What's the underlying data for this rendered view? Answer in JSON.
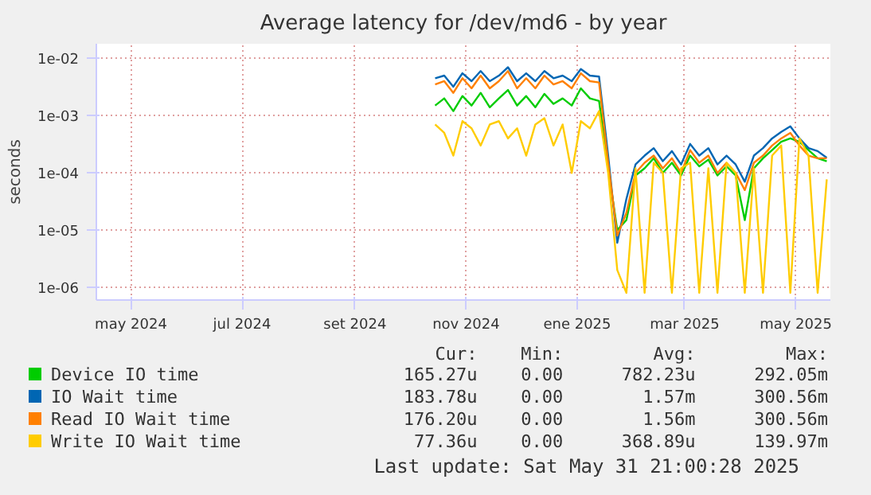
{
  "chart_data": {
    "type": "line",
    "title": "Average latency for /dev/md6 - by year",
    "ylabel": "seconds",
    "x": [
      "2024-10-15",
      "2024-10-20",
      "2024-10-25",
      "2024-10-30",
      "2024-11-04",
      "2024-11-09",
      "2024-11-14",
      "2024-11-19",
      "2024-11-24",
      "2024-11-29",
      "2024-12-04",
      "2024-12-09",
      "2024-12-14",
      "2024-12-19",
      "2024-12-24",
      "2024-12-29",
      "2025-01-03",
      "2025-01-08",
      "2025-01-13",
      "2025-01-18",
      "2025-01-23",
      "2025-01-28",
      "2025-02-02",
      "2025-02-07",
      "2025-02-12",
      "2025-02-17",
      "2025-02-22",
      "2025-02-27",
      "2025-03-04",
      "2025-03-09",
      "2025-03-14",
      "2025-03-19",
      "2025-03-24",
      "2025-03-29",
      "2025-04-03",
      "2025-04-08",
      "2025-04-13",
      "2025-04-18",
      "2025-04-23",
      "2025-04-28",
      "2025-05-03",
      "2025-05-08",
      "2025-05-13",
      "2025-05-18"
    ],
    "series": [
      {
        "name": "Device IO time",
        "color": "#00cc00",
        "values": [
          0.0015,
          0.002,
          0.0012,
          0.0022,
          0.0015,
          0.0025,
          0.0014,
          0.002,
          0.0028,
          0.0015,
          0.0022,
          0.0014,
          0.0024,
          0.0016,
          0.002,
          0.0015,
          0.003,
          0.002,
          0.0018,
          0.00012,
          1e-05,
          1.5e-05,
          9e-05,
          0.00012,
          0.00018,
          0.0001,
          0.00015,
          9e-05,
          0.0002,
          0.00013,
          0.00017,
          9e-05,
          0.00013,
          9e-05,
          1.5e-05,
          0.00012,
          0.00018,
          0.00025,
          0.00035,
          0.0004,
          0.00035,
          0.00025,
          0.00018,
          0.00016
        ]
      },
      {
        "name": "IO Wait time",
        "color": "#0066b3",
        "values": [
          0.0045,
          0.005,
          0.0032,
          0.0055,
          0.004,
          0.006,
          0.004,
          0.005,
          0.007,
          0.004,
          0.0055,
          0.004,
          0.006,
          0.0045,
          0.005,
          0.004,
          0.0065,
          0.005,
          0.0048,
          0.0002,
          6e-06,
          3.5e-05,
          0.00014,
          0.0002,
          0.00027,
          0.00016,
          0.00024,
          0.00014,
          0.00032,
          0.0002,
          0.00027,
          0.00014,
          0.0002,
          0.00014,
          7e-05,
          0.0002,
          0.00027,
          0.0004,
          0.00052,
          0.00065,
          0.0004,
          0.00027,
          0.00024,
          0.000184
        ]
      },
      {
        "name": "Read IO Wait time",
        "color": "#ff8000",
        "values": [
          0.0035,
          0.004,
          0.0025,
          0.0045,
          0.003,
          0.005,
          0.003,
          0.004,
          0.006,
          0.003,
          0.0045,
          0.003,
          0.005,
          0.0035,
          0.004,
          0.003,
          0.0055,
          0.004,
          0.0038,
          0.00015,
          8e-06,
          2e-05,
          0.0001,
          0.00015,
          0.0002,
          0.00012,
          0.00018,
          0.0001,
          0.00025,
          0.00015,
          0.0002,
          0.0001,
          0.00015,
          0.0001,
          5e-05,
          0.00015,
          0.0002,
          0.0003,
          0.0004,
          0.0005,
          0.0003,
          0.0002,
          0.00018,
          0.00018
        ]
      },
      {
        "name": "Write IO Wait time",
        "color": "#ffcc00",
        "values": [
          0.0007,
          0.0005,
          0.0002,
          0.0008,
          0.0006,
          0.0003,
          0.0007,
          0.0008,
          0.0004,
          0.0006,
          0.0002,
          0.0007,
          0.0009,
          0.0003,
          0.0007,
          0.0001,
          0.0008,
          0.0006,
          0.0012,
          0.0001,
          2e-06,
          8e-07,
          0.00012,
          8e-07,
          0.00015,
          0.0001,
          8e-07,
          0.00012,
          0.00015,
          8e-07,
          0.00012,
          8e-07,
          0.00015,
          0.0001,
          8e-07,
          0.00012,
          8e-07,
          0.0002,
          0.0003,
          8e-07,
          0.0004,
          0.0002,
          8e-07,
          7.7e-05
        ]
      }
    ],
    "xlim": [
      "2024-04-12",
      "2025-05-20"
    ],
    "xticks": [
      {
        "value": "2024-05-01",
        "label": "may 2024"
      },
      {
        "value": "2024-07-01",
        "label": "jul 2024"
      },
      {
        "value": "2024-09-01",
        "label": "set 2024"
      },
      {
        "value": "2024-11-01",
        "label": "nov 2024"
      },
      {
        "value": "2025-01-01",
        "label": "ene 2025"
      },
      {
        "value": "2025-03-01",
        "label": "mar 2025"
      },
      {
        "value": "2025-05-01",
        "label": "may 2025"
      }
    ],
    "ylim": [
      6e-07,
      0.018
    ],
    "yticks": [
      {
        "value": 1e-06,
        "label": "1e-06"
      },
      {
        "value": 1e-05,
        "label": "1e-05"
      },
      {
        "value": 0.0001,
        "label": "1e-04"
      },
      {
        "value": 0.001,
        "label": "1e-03"
      },
      {
        "value": 0.01,
        "label": "1e-02"
      }
    ],
    "log": "y",
    "grid": true,
    "legend": "bottom",
    "marker": "none",
    "line_style": "solid",
    "annotations": [
      "Cur:",
      "Min:",
      "Avg:",
      "Max:",
      "165.27u",
      "0.00",
      "782.23u",
      "292.05m",
      "183.78u",
      "0.00",
      "1.57m",
      "300.56m",
      "176.20u",
      "0.00",
      "1.56m",
      "300.56m",
      "77.36u",
      "0.00",
      "368.89u",
      "139.97m",
      "Last update: Sat May 31 21:00:28 2025"
    ]
  }
}
